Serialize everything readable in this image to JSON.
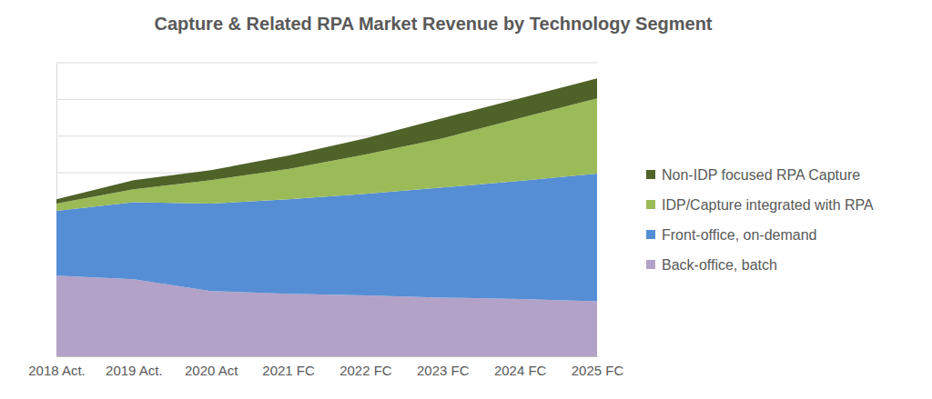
{
  "chart_data": {
    "type": "area",
    "title": "Capture & Related RPA Market Revenue by Technology Segment",
    "categories": [
      "2018 Act.",
      "2019 Act.",
      "2020 Act",
      "2021 FC",
      "2022 FC",
      "2023 FC",
      "2024 FC",
      "2025 FC"
    ],
    "series": [
      {
        "name": "Back-office, batch",
        "color": "#b3a2c7",
        "values": [
          2.2,
          2.1,
          1.78,
          1.7,
          1.66,
          1.6,
          1.56,
          1.5
        ]
      },
      {
        "name": "Front-office, on-demand",
        "color": "#558ed5",
        "values": [
          1.76,
          2.1,
          2.38,
          2.58,
          2.77,
          3.0,
          3.22,
          3.48
        ]
      },
      {
        "name": "IDP/Capture integrated with RPA",
        "color": "#9bbb59",
        "values": [
          0.2,
          0.35,
          0.64,
          0.82,
          1.07,
          1.34,
          1.71,
          2.05
        ]
      },
      {
        "name": "Non-IDP focused RPA Capture",
        "color": "#4f6228",
        "values": [
          0.12,
          0.25,
          0.27,
          0.37,
          0.44,
          0.55,
          0.54,
          0.54
        ]
      }
    ],
    "ylim": [
      0,
      8
    ],
    "yticks": [
      0,
      1,
      2,
      3,
      4,
      5,
      6,
      7,
      8
    ],
    "stacked": true,
    "grid": true,
    "legend": "right",
    "tick_labels": "x"
  }
}
